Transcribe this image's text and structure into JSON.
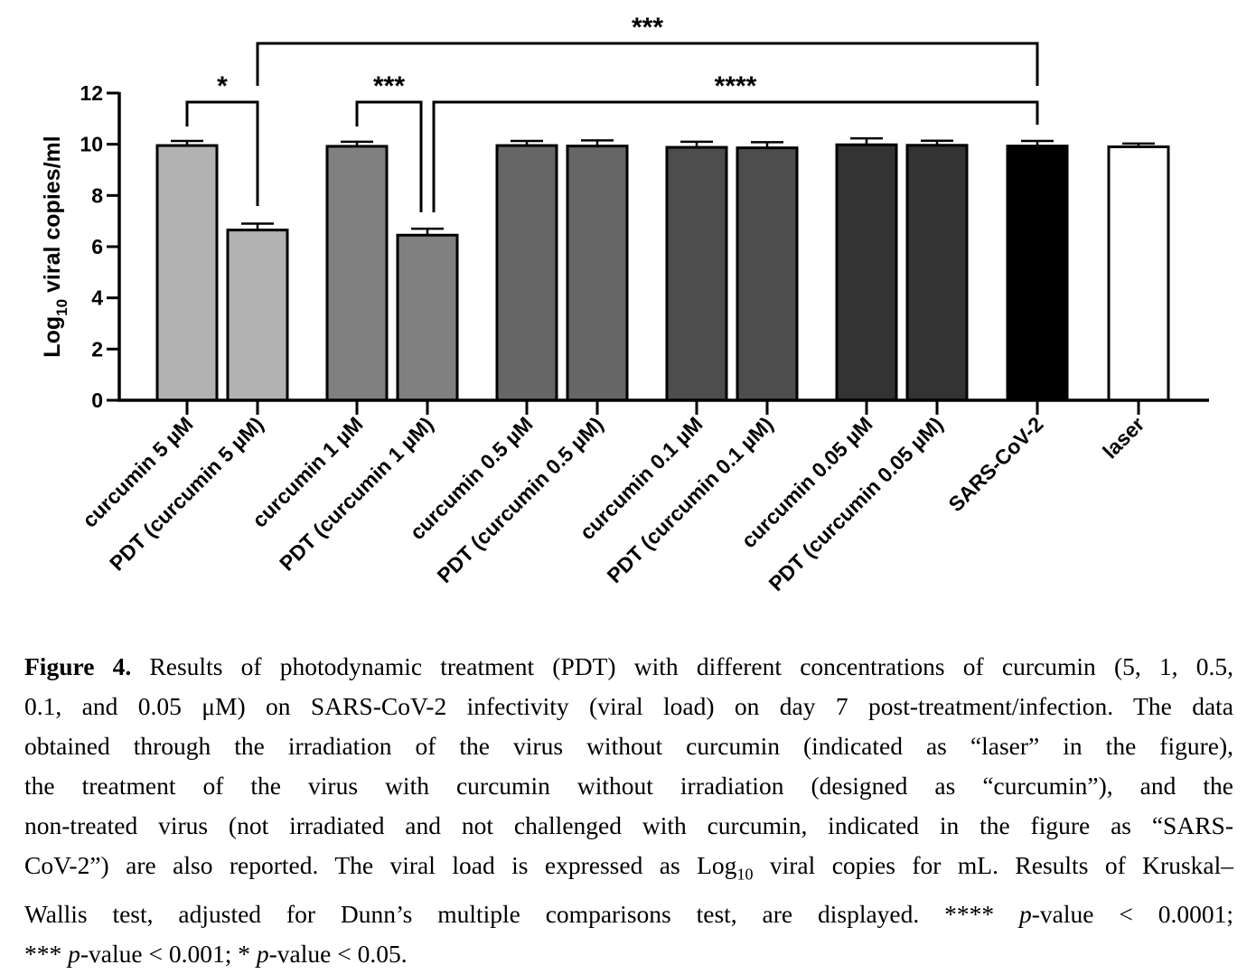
{
  "chart_data": {
    "type": "bar",
    "ylabel": "Log10 viral copies/ml",
    "ylabel_parts": {
      "base": "Log",
      "sub": "10",
      "rest": " viral copies/ml"
    },
    "ylim": [
      0,
      12
    ],
    "yticks": [
      0,
      2,
      4,
      6,
      8,
      10,
      12
    ],
    "categories": [
      "curcumin 5 µM",
      "PDT (curcumin 5 µM)",
      "curcumin 1 µM",
      "PDT (curcumin 1 µM)",
      "curcumin 0.5 µM",
      "PDT (curcumin 0.5 µM)",
      "curcumin 0.1 µM",
      "PDT (curcumin 0.1 µM)",
      "curcumin 0.05 µM",
      "PDT (curcumin 0.05 µM)",
      "SARS-CoV-2",
      "laser"
    ],
    "values": [
      9.95,
      6.65,
      9.92,
      6.45,
      9.95,
      9.93,
      9.88,
      9.86,
      9.98,
      9.96,
      9.93,
      9.9
    ],
    "errors": [
      0.18,
      0.25,
      0.18,
      0.25,
      0.18,
      0.22,
      0.22,
      0.22,
      0.25,
      0.18,
      0.2,
      0.13
    ],
    "colors": [
      "#b2b2b2",
      "#b2b2b2",
      "#808080",
      "#808080",
      "#666666",
      "#666666",
      "#4d4d4d",
      "#4d4d4d",
      "#333333",
      "#333333",
      "#000000",
      "#ffffff"
    ],
    "significance": [
      {
        "from": 0,
        "to": 1,
        "label": "*"
      },
      {
        "from": 2,
        "to": 3,
        "label": "***"
      },
      {
        "from": 3,
        "to": 10,
        "label": "****"
      },
      {
        "from": 1,
        "to": 10,
        "label": "***"
      }
    ]
  },
  "caption": {
    "label": "Figure 4.",
    "lines": [
      " Results of photodynamic treatment (PDT) with different concentrations of curcumin (5, 1, 0.5,",
      "0.1, and 0.05 μM) on SARS-CoV-2 infectivity (viral load) on day 7 post-treatment/infection. The data",
      "obtained through the irradiation of the virus without curcumin (indicated as “laser” in the figure),",
      "the treatment of the virus with curcumin without irradiation (designed as “curcumin”), and the",
      "non-treated virus (not irradiated and not challenged with curcumin, indicated in the figure as “SARS-",
      "CoV-2”) are also reported. The viral load is expressed as Log",
      "10",
      " viral copies for mL. Results of Kruskal–",
      "Wallis test, adjusted for Dunn’s multiple comparisons test, are displayed.  **** ",
      "p",
      "-value < 0.0001;",
      "*** ",
      "p",
      "-value < 0.001; * ",
      "p",
      "-value < 0.05."
    ]
  }
}
